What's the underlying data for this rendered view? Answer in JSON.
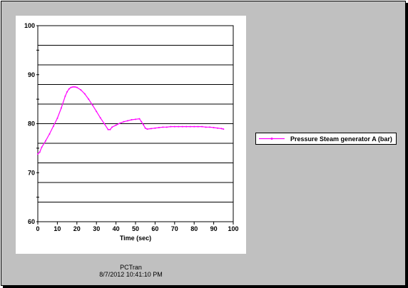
{
  "chart_data": {
    "type": "line",
    "title": "",
    "xlabel": "Time (sec)",
    "ylabel": "",
    "xlim": [
      0,
      100
    ],
    "ylim": [
      60,
      100
    ],
    "xticks": [
      0,
      10,
      20,
      30,
      40,
      50,
      60,
      70,
      80,
      90,
      100
    ],
    "yticks": [
      60,
      70,
      80,
      90,
      100
    ],
    "grid": true,
    "legend_position": "right",
    "series": [
      {
        "name": "Pressure Steam generator A (bar)",
        "color": "#ff00ff",
        "x": [
          0,
          1,
          2,
          4,
          6,
          8,
          10,
          12,
          14,
          15,
          16,
          17,
          18,
          19,
          20,
          22,
          24,
          26,
          28,
          30,
          32,
          34,
          36,
          37,
          38,
          40,
          42,
          44,
          46,
          48,
          50,
          52,
          53,
          54,
          55,
          56,
          58,
          60,
          62,
          64,
          66,
          68,
          70,
          72,
          74,
          76,
          78,
          80,
          82,
          84,
          86,
          88,
          90,
          92,
          94,
          95
        ],
        "y": [
          73.8,
          74.2,
          75.2,
          76.5,
          77.9,
          79.5,
          81.1,
          83.2,
          85.6,
          86.5,
          87.1,
          87.4,
          87.5,
          87.5,
          87.4,
          86.9,
          86.1,
          85.0,
          83.8,
          82.5,
          81.2,
          80.0,
          78.8,
          78.8,
          79.3,
          79.7,
          80.1,
          80.4,
          80.6,
          80.8,
          80.9,
          81.0,
          80.4,
          79.8,
          79.1,
          78.9,
          79.0,
          79.1,
          79.2,
          79.3,
          79.3,
          79.4,
          79.4,
          79.4,
          79.4,
          79.4,
          79.4,
          79.4,
          79.4,
          79.4,
          79.3,
          79.3,
          79.2,
          79.1,
          79.0,
          78.9
        ]
      }
    ]
  },
  "footer": {
    "program": "PCTran",
    "timestamp": "8/7/2012 10:41:10 PM"
  }
}
